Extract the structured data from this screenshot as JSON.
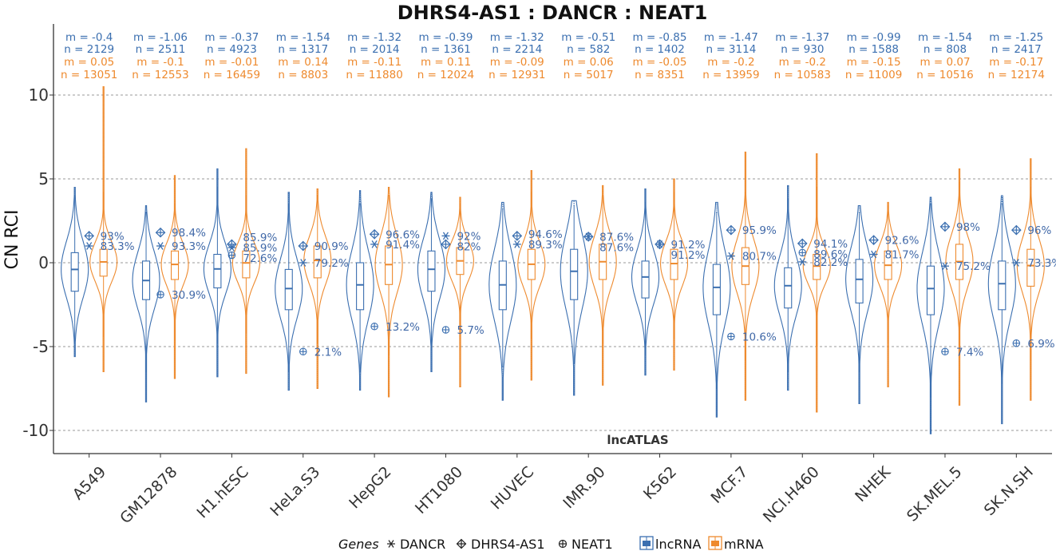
{
  "colors": {
    "lncRNA": "#3b6fb0",
    "mRNA": "#ee8a2e",
    "grid": "#9a9a9a",
    "axis": "#333333"
  },
  "chart_data": {
    "type": "violin",
    "title": "DHRS4-AS1 : DANCR : NEAT1",
    "ylabel": "CN RCI",
    "ylim": [
      -12,
      12.5
    ],
    "yticks": [
      10,
      5,
      0,
      -5,
      -10
    ],
    "ytick_labels": [
      "10",
      "5",
      "0",
      "-5",
      "-10"
    ],
    "grid": true,
    "strip_label": "lncATLAS",
    "legend": {
      "position": "bottom",
      "genes_title": "Genes",
      "genes": [
        {
          "name": "DANCR",
          "icon": "asterisk-icon"
        },
        {
          "name": "DHRS4-AS1",
          "icon": "crossed-diamond-icon"
        },
        {
          "name": "NEAT1",
          "icon": "crossed-circle-icon"
        }
      ],
      "types": [
        {
          "name": "lncRNA",
          "color": "#3b6fb0"
        },
        {
          "name": "mRNA",
          "color": "#ee8a2e"
        }
      ]
    },
    "cell_lines": [
      {
        "name": "A549",
        "lnc": {
          "m": "m = -0.4",
          "n": "n = 2129",
          "q1": -1.7,
          "med": -0.4,
          "q3": 0.6,
          "wmin": -4.8,
          "wmax": 4.0,
          "min": -5.6,
          "max": 4.5
        },
        "mrna": {
          "m": "m = 0.05",
          "n": "n = 13051",
          "q1": -0.8,
          "med": 0.05,
          "q3": 0.8,
          "wmin": -4.4,
          "wmax": 4.2,
          "min": -6.5,
          "max": 10.5
        },
        "genes": {
          "DANCR": {
            "value": 1.0,
            "pct": "83.3%"
          },
          "DHRS4-AS1": {
            "value": 1.6,
            "pct": "93%"
          }
        }
      },
      {
        "name": "GM12878",
        "lnc": {
          "m": "m = -1.06",
          "n": "n = 2511",
          "q1": -2.2,
          "med": -1.06,
          "q3": 0.1,
          "wmin": -6.5,
          "wmax": 3.0,
          "min": -8.3,
          "max": 3.4
        },
        "mrna": {
          "m": "m = -0.1",
          "n": "n = 12553",
          "q1": -1.0,
          "med": -0.1,
          "q3": 0.7,
          "wmin": -4.6,
          "wmax": 3.5,
          "min": -6.9,
          "max": 5.2
        },
        "genes": {
          "DANCR": {
            "value": 1.0,
            "pct": "93.3%"
          },
          "DHRS4-AS1": {
            "value": 1.8,
            "pct": "98.4%"
          },
          "NEAT1": {
            "value": -1.9,
            "pct": "30.9%"
          }
        }
      },
      {
        "name": "H1.hESC",
        "lnc": {
          "m": "m = -0.37",
          "n": "n = 4923",
          "q1": -1.5,
          "med": -0.37,
          "q3": 0.5,
          "wmin": -4.8,
          "wmax": 4.5,
          "min": -6.8,
          "max": 5.6
        },
        "mrna": {
          "m": "m = -0.01",
          "n": "n = 16459",
          "q1": -0.9,
          "med": -0.01,
          "q3": 0.7,
          "wmin": -4.2,
          "wmax": 4.0,
          "min": -6.6,
          "max": 6.8
        },
        "genes": {
          "DANCR": {
            "value": 0.9,
            "pct": "85.9%"
          },
          "DHRS4-AS1": {
            "value": 1.1,
            "pct": "85.9%"
          },
          "NEAT1": {
            "value": 0.45,
            "pct": "72.6%"
          }
        }
      },
      {
        "name": "HeLa.S3",
        "lnc": {
          "m": "m = -1.54",
          "n": "n = 1317",
          "q1": -2.8,
          "med": -1.54,
          "q3": -0.4,
          "wmin": -6.5,
          "wmax": 3.5,
          "min": -7.6,
          "max": 4.2
        },
        "mrna": {
          "m": "m = 0.14",
          "n": "n = 8803",
          "q1": -0.9,
          "med": 0.14,
          "q3": 1.0,
          "wmin": -4.8,
          "wmax": 4.0,
          "min": -7.5,
          "max": 4.4
        },
        "genes": {
          "DANCR": {
            "value": 0.0,
            "pct": "79.2%"
          },
          "DHRS4-AS1": {
            "value": 1.0,
            "pct": "90.9%"
          },
          "NEAT1": {
            "value": -5.3,
            "pct": "2.1%"
          }
        }
      },
      {
        "name": "HepG2",
        "lnc": {
          "m": "m = -1.32",
          "n": "n = 2014",
          "q1": -2.8,
          "med": -1.32,
          "q3": 0.0,
          "wmin": -6.5,
          "wmax": 3.5,
          "min": -7.6,
          "max": 4.3
        },
        "mrna": {
          "m": "m = -0.11",
          "n": "n = 11880",
          "q1": -1.3,
          "med": -0.11,
          "q3": 1.0,
          "wmin": -5.5,
          "wmax": 4.0,
          "min": -8.0,
          "max": 4.5
        },
        "genes": {
          "DANCR": {
            "value": 1.1,
            "pct": "91.4%"
          },
          "DHRS4-AS1": {
            "value": 1.7,
            "pct": "96.6%"
          },
          "NEAT1": {
            "value": -3.8,
            "pct": "13.2%"
          }
        }
      },
      {
        "name": "HT1080",
        "lnc": {
          "m": "m = -0.39",
          "n": "n = 1361",
          "q1": -1.7,
          "med": -0.39,
          "q3": 0.7,
          "wmin": -5.2,
          "wmax": 3.8,
          "min": -6.5,
          "max": 4.2
        },
        "mrna": {
          "m": "m = 0.11",
          "n": "n = 12024",
          "q1": -0.7,
          "med": 0.11,
          "q3": 0.9,
          "wmin": -4.0,
          "wmax": 3.5,
          "min": -7.4,
          "max": 3.9
        },
        "genes": {
          "DANCR": {
            "value": 1.6,
            "pct": "92%"
          },
          "DHRS4-AS1": {
            "value": 1.1,
            "pct": "82%"
          },
          "NEAT1": {
            "value": -4.0,
            "pct": "5.7%"
          }
        }
      },
      {
        "name": "HUVEC",
        "lnc": {
          "m": "m = -1.32",
          "n": "n = 2214",
          "q1": -2.8,
          "med": -1.32,
          "q3": 0.1,
          "wmin": -6.2,
          "wmax": 3.2,
          "min": -8.2,
          "max": 3.6
        },
        "mrna": {
          "m": "m = -0.09",
          "n": "n = 12931",
          "q1": -1.0,
          "med": -0.09,
          "q3": 0.8,
          "wmin": -4.5,
          "wmax": 4.2,
          "min": -7.0,
          "max": 5.5
        },
        "genes": {
          "DANCR": {
            "value": 1.1,
            "pct": "89.3%"
          },
          "DHRS4-AS1": {
            "value": 1.6,
            "pct": "94.6%"
          }
        }
      },
      {
        "name": "IMR.90",
        "lnc": {
          "m": "m = -0.51",
          "n": "n = 582",
          "q1": -2.2,
          "med": -0.51,
          "q3": 0.8,
          "wmin": -6.0,
          "wmax": 3.4,
          "min": -7.9,
          "max": 3.7
        },
        "mrna": {
          "m": "m = 0.06",
          "n": "n = 5017",
          "q1": -1.0,
          "med": 0.06,
          "q3": 1.1,
          "wmin": -4.8,
          "wmax": 4.0,
          "min": -7.3,
          "max": 4.6
        },
        "genes": {
          "DANCR": {
            "value": 1.55,
            "pct": "87.6%"
          },
          "DHRS4-AS1": {
            "value": 1.55,
            "pct": "87.6%"
          }
        }
      },
      {
        "name": "K562",
        "lnc": {
          "m": "m = -0.85",
          "n": "n = 1402",
          "q1": -2.1,
          "med": -0.85,
          "q3": 0.1,
          "wmin": -5.5,
          "wmax": 3.6,
          "min": -6.7,
          "max": 4.4
        },
        "mrna": {
          "m": "m = -0.05",
          "n": "n = 8351",
          "q1": -1.0,
          "med": -0.05,
          "q3": 0.8,
          "wmin": -4.5,
          "wmax": 4.2,
          "min": -6.4,
          "max": 5.0
        },
        "genes": {
          "DANCR": {
            "value": 1.1,
            "pct": "91.2%"
          },
          "DHRS4-AS1": {
            "value": 1.1,
            "pct": "91.2%"
          }
        }
      },
      {
        "name": "MCF.7",
        "lnc": {
          "m": "m = -1.47",
          "n": "n = 3114",
          "q1": -3.1,
          "med": -1.47,
          "q3": -0.1,
          "wmin": -7.5,
          "wmax": 3.0,
          "min": -9.2,
          "max": 3.6
        },
        "mrna": {
          "m": "m = -0.2",
          "n": "n = 13959",
          "q1": -1.3,
          "med": -0.2,
          "q3": 0.9,
          "wmin": -5.8,
          "wmax": 4.2,
          "min": -8.2,
          "max": 6.6
        },
        "genes": {
          "DANCR": {
            "value": 0.4,
            "pct": "80.7%"
          },
          "DHRS4-AS1": {
            "value": 1.95,
            "pct": "95.9%"
          },
          "NEAT1": {
            "value": -4.4,
            "pct": "10.6%"
          }
        }
      },
      {
        "name": "NCI.H460",
        "lnc": {
          "m": "m = -1.37",
          "n": "n = 930",
          "q1": -2.7,
          "med": -1.37,
          "q3": -0.3,
          "wmin": -6.5,
          "wmax": 3.8,
          "min": -7.6,
          "max": 4.6
        },
        "mrna": {
          "m": "m = -0.2",
          "n": "n = 10583",
          "q1": -1.0,
          "med": -0.2,
          "q3": 0.5,
          "wmin": -5.0,
          "wmax": 4.5,
          "min": -8.9,
          "max": 6.5
        },
        "genes": {
          "DANCR": {
            "value": 0.05,
            "pct": "82.2%"
          },
          "DHRS4-AS1": {
            "value": 1.15,
            "pct": "94.1%"
          },
          "NEAT1": {
            "value": 0.6,
            "pct": "89.6%"
          }
        }
      },
      {
        "name": "NHEK",
        "lnc": {
          "m": "m = -0.99",
          "n": "n = 1588",
          "q1": -2.4,
          "med": -0.99,
          "q3": 0.2,
          "wmin": -6.5,
          "wmax": 3.0,
          "min": -8.4,
          "max": 3.4
        },
        "mrna": {
          "m": "m = -0.15",
          "n": "n = 11009",
          "q1": -1.0,
          "med": -0.15,
          "q3": 0.7,
          "wmin": -4.8,
          "wmax": 3.4,
          "min": -7.4,
          "max": 3.6
        },
        "genes": {
          "DANCR": {
            "value": 0.5,
            "pct": "81.7%"
          },
          "DHRS4-AS1": {
            "value": 1.35,
            "pct": "92.6%"
          }
        }
      },
      {
        "name": "SK.MEL.5",
        "lnc": {
          "m": "m = -1.54",
          "n": "n = 808",
          "q1": -3.1,
          "med": -1.54,
          "q3": -0.2,
          "wmin": -8.0,
          "wmax": 3.5,
          "min": -10.2,
          "max": 3.9
        },
        "mrna": {
          "m": "m = 0.07",
          "n": "n = 10516",
          "q1": -1.0,
          "med": 0.07,
          "q3": 1.1,
          "wmin": -5.5,
          "wmax": 4.8,
          "min": -8.5,
          "max": 5.6
        },
        "genes": {
          "DANCR": {
            "value": -0.2,
            "pct": "75.2%"
          },
          "DHRS4-AS1": {
            "value": 2.15,
            "pct": "98%"
          },
          "NEAT1": {
            "value": -5.3,
            "pct": "7.4%"
          }
        }
      },
      {
        "name": "SK.N.SH",
        "lnc": {
          "m": "m = -1.25",
          "n": "n = 2417",
          "q1": -2.8,
          "med": -1.25,
          "q3": 0.1,
          "wmin": -7.2,
          "wmax": 3.5,
          "min": -9.6,
          "max": 4.0
        },
        "mrna": {
          "m": "m = -0.17",
          "n": "n = 12174",
          "q1": -1.4,
          "med": -0.17,
          "q3": 0.8,
          "wmin": -5.8,
          "wmax": 4.5,
          "min": -8.2,
          "max": 6.2
        },
        "genes": {
          "DANCR": {
            "value": 0.0,
            "pct": "73.3%"
          },
          "DHRS4-AS1": {
            "value": 1.95,
            "pct": "96%"
          },
          "NEAT1": {
            "value": -4.8,
            "pct": "6.9%"
          }
        }
      }
    ]
  }
}
